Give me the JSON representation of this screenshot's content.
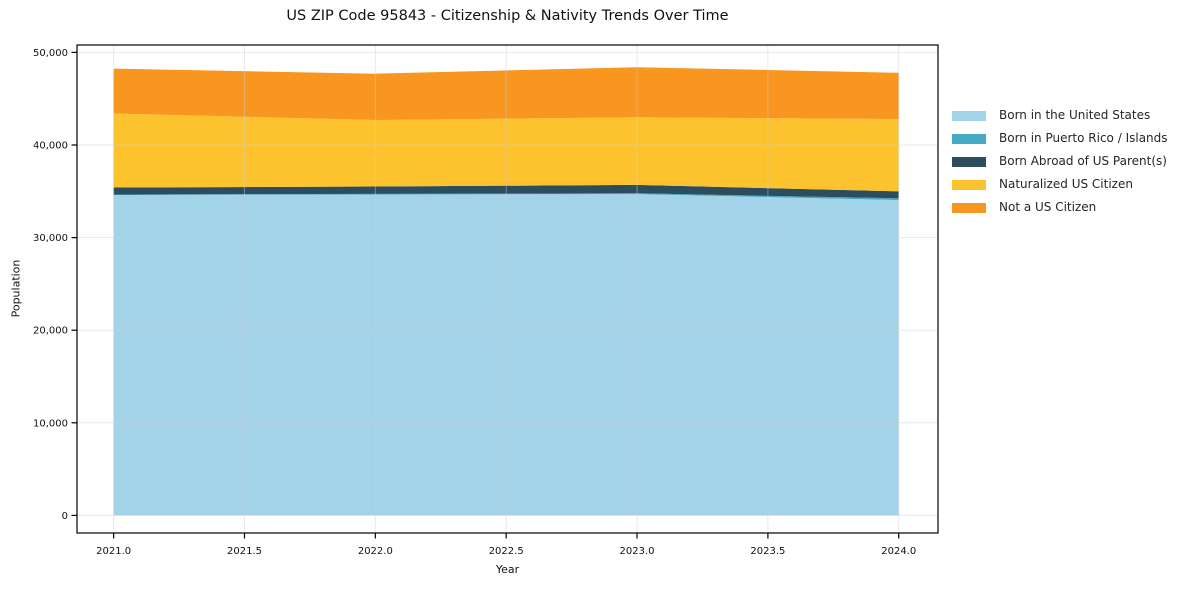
{
  "figure": {
    "background": "#ffffff",
    "frame_color": "#000000",
    "grid_color": "#cfcfcf",
    "text_color": "#111111"
  },
  "chart_data": {
    "type": "area",
    "stacked": true,
    "title": "US ZIP Code 95843 - Citizenship & Nativity Trends Over Time",
    "xlabel": "Year",
    "ylabel": "Population",
    "x": [
      2021,
      2022,
      2023,
      2024
    ],
    "series": [
      {
        "name": "Born in the United States",
        "color": "#a3d3e9",
        "values": [
          34600,
          34650,
          34700,
          34050
        ]
      },
      {
        "name": "Born in Puerto Rico / Islands",
        "color": "#45a9c4",
        "values": [
          60,
          70,
          90,
          200
        ]
      },
      {
        "name": "Born Abroad of US Parent(s)",
        "color": "#2d4d5f",
        "values": [
          750,
          800,
          900,
          750
        ]
      },
      {
        "name": "Naturalized US Citizen",
        "color": "#fdc32f",
        "values": [
          7990,
          7180,
          7310,
          7800
        ]
      },
      {
        "name": "Not a US Citizen",
        "color": "#f8961f",
        "values": [
          4850,
          5000,
          5400,
          5000
        ]
      }
    ],
    "stacked_totals": [
      48250,
      47700,
      48400,
      47800
    ],
    "xlim": [
      2020.86,
      2024.15
    ],
    "ylim": [
      -1900,
      50800
    ],
    "xticks": {
      "values": [
        2021.0,
        2021.5,
        2022.0,
        2022.5,
        2023.0,
        2023.5,
        2024.0
      ],
      "labels": [
        "2021.0",
        "2021.5",
        "2022.0",
        "2022.5",
        "2023.0",
        "2023.5",
        "2024.0"
      ]
    },
    "yticks": {
      "values": [
        0,
        10000,
        20000,
        30000,
        40000,
        50000
      ],
      "labels": [
        "0",
        "10,000",
        "20,000",
        "30,000",
        "40,000",
        "50,000"
      ]
    },
    "grid": true,
    "legend_position": "right-outside"
  }
}
